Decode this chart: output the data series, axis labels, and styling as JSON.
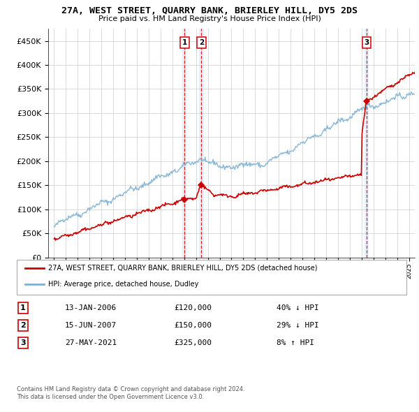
{
  "title": "27A, WEST STREET, QUARRY BANK, BRIERLEY HILL, DY5 2DS",
  "subtitle": "Price paid vs. HM Land Registry's House Price Index (HPI)",
  "hpi_color": "#7bafd4",
  "price_color": "#cc0000",
  "background_color": "#ffffff",
  "grid_color": "#cccccc",
  "legend_line1": "27A, WEST STREET, QUARRY BANK, BRIERLEY HILL, DY5 2DS (detached house)",
  "legend_line2": "HPI: Average price, detached house, Dudley",
  "transactions": [
    {
      "label": "1",
      "date": "13-JAN-2006",
      "price": 120000,
      "pct": "40%",
      "dir": "↓",
      "x_year": 2006.04
    },
    {
      "label": "2",
      "date": "15-JUN-2007",
      "price": 150000,
      "pct": "29%",
      "dir": "↓",
      "x_year": 2007.46
    },
    {
      "label": "3",
      "date": "27-MAY-2021",
      "price": 325000,
      "pct": "8%",
      "dir": "↑",
      "x_year": 2021.41
    }
  ],
  "footer1": "Contains HM Land Registry data © Crown copyright and database right 2024.",
  "footer2": "This data is licensed under the Open Government Licence v3.0.",
  "ylim": [
    0,
    475000
  ],
  "xlim_start": 1994.5,
  "xlim_end": 2025.5
}
